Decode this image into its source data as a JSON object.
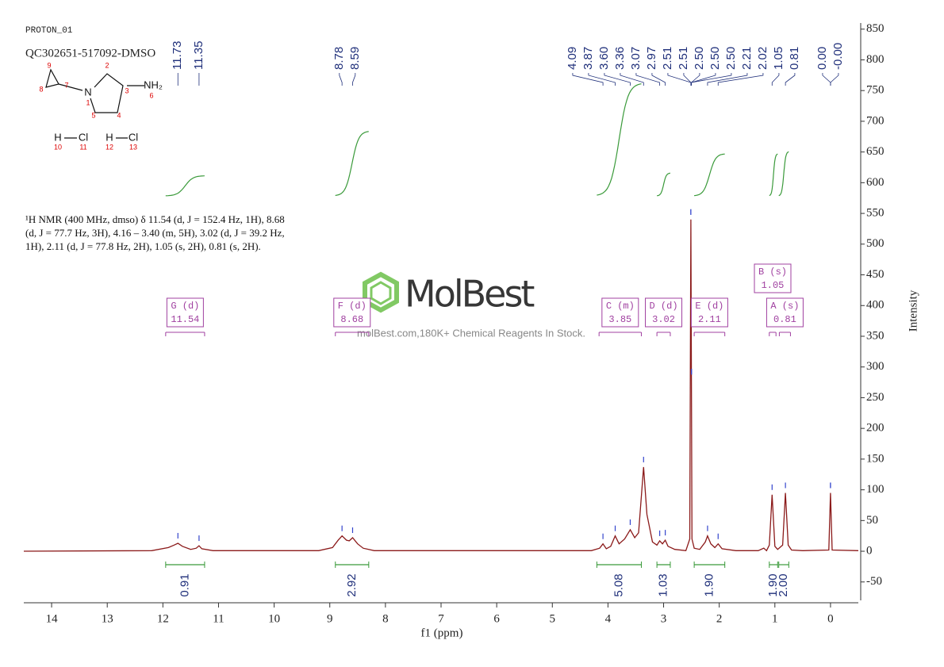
{
  "header": {
    "experiment": "PROTON_01",
    "sample": "QC302651-517092-DMSO"
  },
  "structure": {
    "atoms": [
      {
        "label": "N",
        "number": 1
      },
      {
        "label": "NH₂",
        "number": 6
      },
      {
        "label": "H",
        "number": 10
      },
      {
        "label": "Cl",
        "number": 11
      },
      {
        "label": "H",
        "number": 12
      },
      {
        "label": "Cl",
        "number": 13
      }
    ],
    "locants": [
      2,
      3,
      4,
      5,
      7,
      8,
      9
    ]
  },
  "description": "¹H NMR (400 MHz, dmso) δ 11.54 (d, J = 152.4 Hz, 1H), 8.68 (d, J = 77.7 Hz, 3H), 4.16 – 3.40 (m, 5H), 3.02 (d, J = 39.2 Hz, 1H), 2.11 (d, J = 77.8 Hz, 2H), 1.05 (s, 2H), 0.81 (s, 2H).",
  "watermark": {
    "brand": "MolBest",
    "tagline": "molBest.com,180K+ Chemical Reagents In Stock."
  },
  "chart_data": {
    "type": "line",
    "color": "#8b1a1a",
    "x": [
      14.5,
      12.2,
      11.9,
      11.8,
      11.73,
      11.65,
      11.5,
      11.4,
      11.35,
      11.3,
      11.1,
      9.2,
      8.95,
      8.85,
      8.78,
      8.7,
      8.65,
      8.59,
      8.5,
      8.4,
      8.2,
      7.5,
      4.3,
      4.15,
      4.09,
      4.03,
      3.95,
      3.87,
      3.8,
      3.7,
      3.6,
      3.52,
      3.45,
      3.36,
      3.3,
      3.2,
      3.12,
      3.07,
      3.02,
      2.97,
      2.92,
      2.8,
      2.6,
      2.53,
      2.51,
      2.49,
      2.45,
      2.35,
      2.25,
      2.21,
      2.15,
      2.08,
      2.02,
      1.95,
      1.7,
      1.3,
      1.2,
      1.15,
      1.1,
      1.05,
      1.0,
      0.95,
      0.86,
      0.81,
      0.76,
      0.7,
      0.5,
      0.03,
      0.0,
      -0.03,
      -0.5
    ],
    "values": [
      0,
      1,
      6,
      10,
      13,
      8,
      3,
      5,
      9,
      4,
      1,
      1,
      6,
      18,
      25,
      18,
      17,
      22,
      12,
      5,
      1,
      1,
      1,
      5,
      12,
      4,
      8,
      25,
      12,
      20,
      35,
      22,
      30,
      137,
      60,
      15,
      10,
      17,
      12,
      18,
      8,
      3,
      1,
      20,
      540,
      20,
      5,
      3,
      15,
      25,
      12,
      6,
      12,
      4,
      1,
      1,
      5,
      1,
      10,
      92,
      8,
      3,
      10,
      95,
      10,
      2,
      1,
      2,
      95,
      2,
      1
    ],
    "xlabel": "f1 (ppm)",
    "ylabel": "Intensity",
    "xlim": [
      14.5,
      -0.5
    ],
    "ylim": [
      -80,
      860
    ],
    "xticks": [
      14,
      13,
      12,
      11,
      10,
      9,
      8,
      7,
      6,
      5,
      4,
      3,
      2,
      1,
      0
    ],
    "yticks": [
      -50,
      0,
      50,
      100,
      150,
      200,
      250,
      300,
      350,
      400,
      450,
      500,
      550,
      600,
      650,
      700,
      750,
      800,
      850
    ],
    "peaks": {
      "values": [
        11.73,
        11.35,
        8.78,
        8.59,
        4.09,
        3.87,
        3.6,
        3.36,
        3.07,
        2.97,
        2.51,
        2.51,
        2.5,
        2.5,
        2.5,
        2.21,
        2.02,
        1.05,
        0.81,
        0,
        0
      ],
      "value_labels": [
        "11.73",
        "11.35",
        "8.78",
        "8.59",
        "4.09",
        "3.87",
        "3.60",
        "3.36",
        "3.07",
        "2.97",
        "2.51",
        "2.51",
        "2.50",
        "2.50",
        "2.50",
        "2.21",
        "2.02",
        "1.05",
        "0.81",
        "0.00",
        "-0.00"
      ],
      "color": "#1f2f7a"
    },
    "integrals": {
      "ranges": [
        [
          11.95,
          11.25
        ],
        [
          8.9,
          8.3
        ],
        [
          4.2,
          3.4
        ],
        [
          3.12,
          2.88
        ],
        [
          2.45,
          1.9
        ],
        [
          1.1,
          0.95
        ],
        [
          0.93,
          0.75
        ]
      ],
      "values": [
        0.91,
        2.92,
        5.08,
        1.03,
        1.9,
        1.9,
        2
      ],
      "value_labels": [
        "0.91",
        "2.92",
        "5.08",
        "1.03",
        "1.90",
        "1.90",
        "2.00"
      ],
      "color": "#3a9a3a"
    },
    "multiplets": {
      "labels": [
        "G (d)",
        "F (d)",
        "C (m)",
        "D (d)",
        "E (d)",
        "B (s)",
        "A (s)"
      ],
      "shifts": [
        11.54,
        8.68,
        3.85,
        3.02,
        2.11,
        1.05,
        0.81
      ],
      "ranges": [
        [
          11.95,
          11.25
        ],
        [
          8.9,
          8.3
        ],
        [
          4.16,
          3.4
        ],
        [
          3.12,
          2.88
        ],
        [
          2.45,
          1.9
        ],
        [
          1.1,
          0.98
        ],
        [
          0.92,
          0.72
        ]
      ],
      "color": "#a040a0"
    }
  }
}
